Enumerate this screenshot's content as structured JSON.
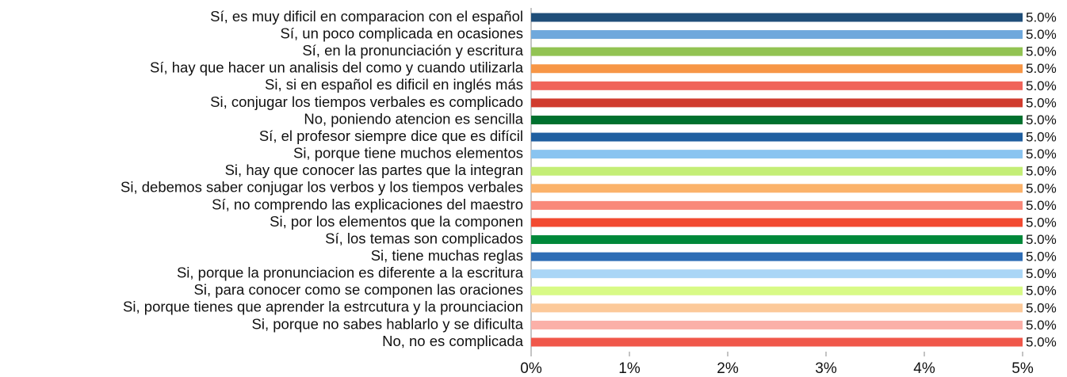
{
  "chart_data": {
    "type": "bar",
    "orientation": "horizontal",
    "categories": [
      "Sí, es muy dificil en comparacion con el español",
      "Sí, un poco complicada en ocasiones",
      "Sí, en la pronunciación y escritura",
      "Sí, hay que hacer un analisis del como y cuando utilizarla",
      "Si, si en español es dificil en inglés más",
      "Si, conjugar los tiempos verbales es complicado",
      "No, poniendo atencion es sencilla",
      "Sí, el profesor siempre dice que es difícil",
      "Si, porque tiene muchos elementos",
      "Si, hay que conocer las partes que la integran",
      "Si, debemos saber conjugar los verbos y los tiempos verbales",
      "Sí, no comprendo las explicaciones del maestro",
      "Si, por los elementos que la componen",
      "Sí, los temas son complicados",
      "Si, tiene muchas reglas",
      "Si, porque la pronunciacion es diferente a la escritura",
      "Si, para conocer como se componen las oraciones",
      "Si, porque tienes que aprender la estrcutura y la prounciacion",
      "Si, porque no sabes hablarlo y se dificulta",
      "No, no es complicada"
    ],
    "values": [
      5,
      5,
      5,
      5,
      5,
      5,
      5,
      5,
      5,
      5,
      5,
      5,
      5,
      5,
      5,
      5,
      5,
      5,
      5,
      5
    ],
    "value_labels": [
      "5.0%",
      "5.0%",
      "5.0%",
      "5.0%",
      "5.0%",
      "5.0%",
      "5.0%",
      "5.0%",
      "5.0%",
      "5.0%",
      "5.0%",
      "5.0%",
      "5.0%",
      "5.0%",
      "5.0%",
      "5.0%",
      "5.0%",
      "5.0%",
      "5.0%",
      "5.0%"
    ],
    "colors": [
      "#1f4e79",
      "#6fa8dc",
      "#92c353",
      "#f79646",
      "#f0645a",
      "#d03b2d",
      "#00702e",
      "#1f5fa0",
      "#8ac4f0",
      "#c4ee76",
      "#fbb26a",
      "#f9897a",
      "#f24a30",
      "#00883a",
      "#2e6db5",
      "#aad6f6",
      "#d8fa86",
      "#fcc99a",
      "#fbb0a8",
      "#f0574a"
    ],
    "xlim": [
      0,
      5
    ],
    "xticks": [
      {
        "value": 0,
        "label": "0%"
      },
      {
        "value": 1,
        "label": "1%"
      },
      {
        "value": 2,
        "label": "2%"
      },
      {
        "value": 3,
        "label": "3%"
      },
      {
        "value": 4,
        "label": "4%"
      },
      {
        "value": 5,
        "label": "5%"
      }
    ],
    "grid": false
  }
}
